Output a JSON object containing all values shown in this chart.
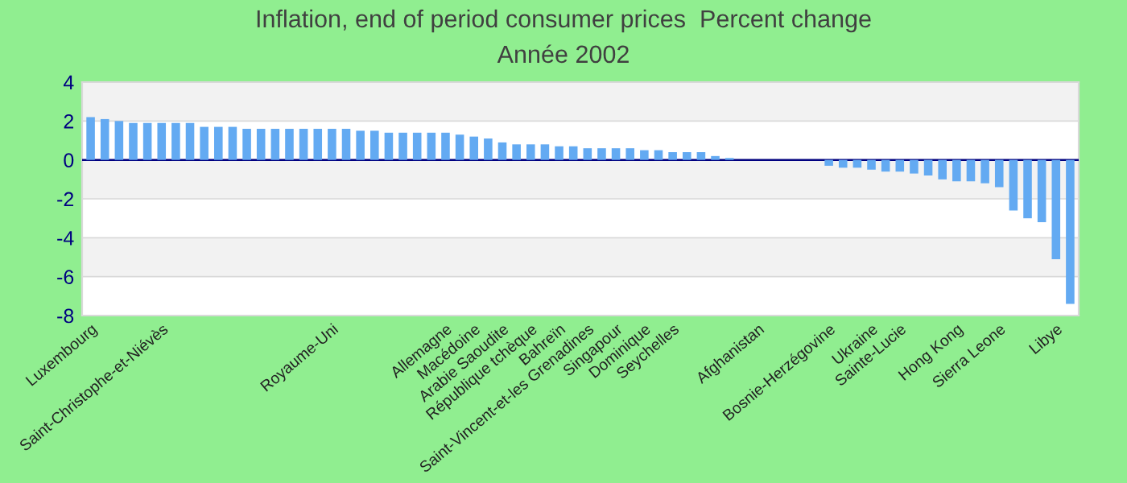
{
  "chart_data": {
    "type": "bar",
    "title": "Inflation, end of period consumer prices  Percent change",
    "subtitle": "Année 2002",
    "categories": [
      "Luxembourg",
      null,
      null,
      null,
      null,
      "Saint-Christophe-et-Niévès",
      null,
      null,
      null,
      null,
      null,
      null,
      null,
      null,
      null,
      null,
      null,
      "Royaume-Uni",
      null,
      null,
      null,
      null,
      null,
      null,
      null,
      "Allemagne",
      null,
      "Macédoine",
      null,
      "Arabie Saoudite",
      null,
      "République tchèque",
      null,
      "Bahreïn",
      null,
      "Saint-Vincent-et-les Grenadines",
      null,
      "Singapour",
      null,
      "Dominique",
      null,
      "Seychelles",
      null,
      null,
      null,
      null,
      null,
      "Afghanistan",
      null,
      null,
      null,
      null,
      "Bosnie-Herzégovine",
      null,
      null,
      "Ukraine",
      null,
      "Sainte-Lucie",
      null,
      null,
      null,
      "Hong Kong",
      null,
      null,
      "Sierra Leone",
      null,
      null,
      null,
      "Libye",
      null
    ],
    "values": [
      2.2,
      2.1,
      2.0,
      1.9,
      1.9,
      1.9,
      1.9,
      1.9,
      1.7,
      1.7,
      1.7,
      1.6,
      1.6,
      1.6,
      1.6,
      1.6,
      1.6,
      1.6,
      1.6,
      1.5,
      1.5,
      1.4,
      1.4,
      1.4,
      1.4,
      1.4,
      1.3,
      1.2,
      1.1,
      0.9,
      0.8,
      0.8,
      0.8,
      0.7,
      0.7,
      0.6,
      0.6,
      0.6,
      0.6,
      0.5,
      0.5,
      0.4,
      0.4,
      0.4,
      0.2,
      0.1,
      0,
      0,
      0,
      0,
      0,
      0,
      -0.3,
      -0.4,
      -0.4,
      -0.5,
      -0.6,
      -0.6,
      -0.7,
      -0.8,
      -1.0,
      -1.1,
      -1.1,
      -1.2,
      -1.4,
      -2.6,
      -3.0,
      -3.2,
      -5.1,
      -7.4
    ],
    "color": "#63aaf2",
    "ylim": [
      -8,
      4
    ],
    "yticks": [
      -8,
      -6,
      -4,
      -2,
      0,
      2,
      4
    ],
    "grid": "y",
    "ref_lines": [
      {
        "axis": "y",
        "value": 0,
        "color": "#000080"
      }
    ]
  }
}
